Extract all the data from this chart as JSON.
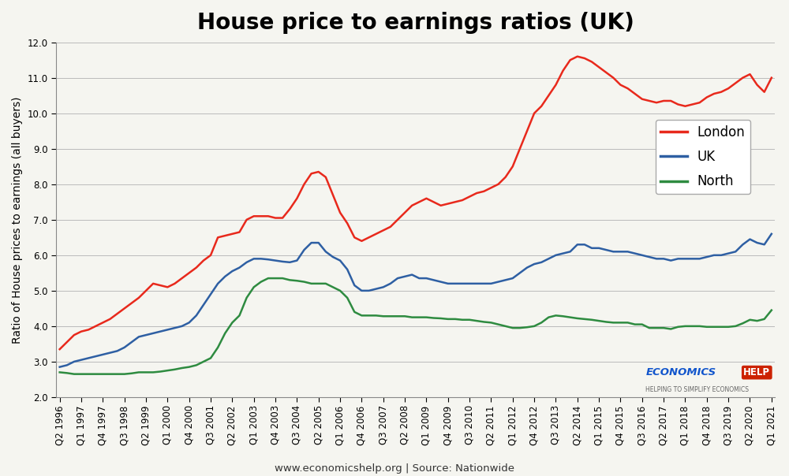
{
  "title": "House price to earnings ratios (UK)",
  "ylabel": "Ratio of House prices to earnings (all buyers)",
  "footer": "www.economicshelp.org | Source: Nationwide",
  "ylim": [
    2.0,
    12.0
  ],
  "yticks": [
    2.0,
    3.0,
    4.0,
    5.0,
    6.0,
    7.0,
    8.0,
    9.0,
    10.0,
    11.0,
    12.0
  ],
  "xlabels_shown": [
    "Q2 1996",
    "Q1 1997",
    "Q4 1997",
    "Q3 1998",
    "Q2 1999",
    "Q1 2000",
    "Q4 2000",
    "Q3 2001",
    "Q2 2002",
    "Q1 2003",
    "Q4 2003",
    "Q3 2004",
    "Q2 2005",
    "Q1 2006",
    "Q4 2006",
    "Q3 2007",
    "Q2 2008",
    "Q1 2009",
    "Q4 2009",
    "Q3 2010",
    "Q2 2011",
    "Q1 2012",
    "Q4 2012",
    "Q3 2013",
    "Q2 2014",
    "Q1 2015",
    "Q4 2015",
    "Q3 2016",
    "Q2 2017",
    "Q1 2018",
    "Q4 2018",
    "Q3 2019",
    "Q2 2020",
    "Q1 2021"
  ],
  "london": [
    3.35,
    3.55,
    3.75,
    3.85,
    3.9,
    4.0,
    4.1,
    4.2,
    4.35,
    4.5,
    4.65,
    4.8,
    5.0,
    5.2,
    5.15,
    5.1,
    5.2,
    5.35,
    5.5,
    5.65,
    5.85,
    6.0,
    6.5,
    6.55,
    6.6,
    6.65,
    7.0,
    7.1,
    7.1,
    7.1,
    7.05,
    7.05,
    7.3,
    7.6,
    8.0,
    8.3,
    8.35,
    8.2,
    7.7,
    7.2,
    6.9,
    6.5,
    6.4,
    6.5,
    6.6,
    6.7,
    6.8,
    7.0,
    7.2,
    7.4,
    7.5,
    7.6,
    7.5,
    7.4,
    7.45,
    7.5,
    7.55,
    7.65,
    7.75,
    7.8,
    7.9,
    8.0,
    8.2,
    8.5,
    9.0,
    9.5,
    10.0,
    10.2,
    10.5,
    10.8,
    11.2,
    11.5,
    11.6,
    11.55,
    11.45,
    11.3,
    11.15,
    11.0,
    10.8,
    10.7,
    10.55,
    10.4,
    10.35,
    10.3,
    10.35,
    10.35,
    10.25,
    10.2,
    10.25,
    10.3,
    10.45,
    10.55,
    10.6,
    10.7,
    10.85,
    11.0,
    11.1,
    10.8,
    10.6,
    11.0
  ],
  "uk": [
    2.85,
    2.9,
    3.0,
    3.05,
    3.1,
    3.15,
    3.2,
    3.25,
    3.3,
    3.4,
    3.55,
    3.7,
    3.75,
    3.8,
    3.85,
    3.9,
    3.95,
    4.0,
    4.1,
    4.3,
    4.6,
    4.9,
    5.2,
    5.4,
    5.55,
    5.65,
    5.8,
    5.9,
    5.9,
    5.88,
    5.85,
    5.82,
    5.8,
    5.85,
    6.15,
    6.35,
    6.35,
    6.1,
    5.95,
    5.85,
    5.6,
    5.15,
    5.0,
    5.0,
    5.05,
    5.1,
    5.2,
    5.35,
    5.4,
    5.45,
    5.35,
    5.35,
    5.3,
    5.25,
    5.2,
    5.2,
    5.2,
    5.2,
    5.2,
    5.2,
    5.2,
    5.25,
    5.3,
    5.35,
    5.5,
    5.65,
    5.75,
    5.8,
    5.9,
    6.0,
    6.05,
    6.1,
    6.3,
    6.3,
    6.2,
    6.2,
    6.15,
    6.1,
    6.1,
    6.1,
    6.05,
    6.0,
    5.95,
    5.9,
    5.9,
    5.85,
    5.9,
    5.9,
    5.9,
    5.9,
    5.95,
    6.0,
    6.0,
    6.05,
    6.1,
    6.3,
    6.45,
    6.35,
    6.3,
    6.6
  ],
  "north": [
    2.7,
    2.68,
    2.65,
    2.65,
    2.65,
    2.65,
    2.65,
    2.65,
    2.65,
    2.65,
    2.67,
    2.7,
    2.7,
    2.7,
    2.72,
    2.75,
    2.78,
    2.82,
    2.85,
    2.9,
    3.0,
    3.1,
    3.4,
    3.8,
    4.1,
    4.3,
    4.8,
    5.1,
    5.25,
    5.35,
    5.35,
    5.35,
    5.3,
    5.28,
    5.25,
    5.2,
    5.2,
    5.2,
    5.1,
    5.0,
    4.8,
    4.4,
    4.3,
    4.3,
    4.3,
    4.28,
    4.28,
    4.28,
    4.28,
    4.25,
    4.25,
    4.25,
    4.23,
    4.22,
    4.2,
    4.2,
    4.18,
    4.18,
    4.15,
    4.12,
    4.1,
    4.05,
    4.0,
    3.95,
    3.95,
    3.97,
    4.0,
    4.1,
    4.25,
    4.3,
    4.28,
    4.25,
    4.22,
    4.2,
    4.18,
    4.15,
    4.12,
    4.1,
    4.1,
    4.1,
    4.05,
    4.05,
    3.95,
    3.95,
    3.95,
    3.92,
    3.98,
    4.0,
    4.0,
    4.0,
    3.98,
    3.98,
    3.98,
    3.98,
    4.0,
    4.08,
    4.18,
    4.15,
    4.2,
    4.45
  ],
  "london_color": "#e8291c",
  "uk_color": "#2e5fa3",
  "north_color": "#2e8b40",
  "background_color": "#f5f5f0",
  "plot_bg_color": "#f5f5f0",
  "grid_color": "#bbbbbb",
  "title_fontsize": 20,
  "axis_label_fontsize": 10,
  "tick_fontsize": 8.5,
  "legend_fontsize": 12
}
